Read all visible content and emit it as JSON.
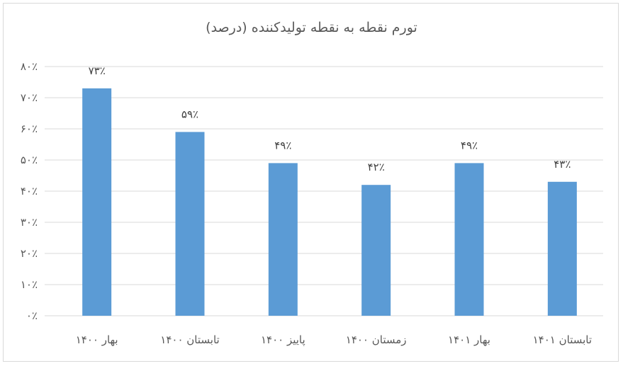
{
  "chart_data": {
    "type": "bar",
    "title": "تورم نقطه به نقطه تولیدکننده (درصد)",
    "categories": [
      "بهار ۱۴۰۰",
      "تابستان ۱۴۰۰",
      "پاییز ۱۴۰۰",
      "زمستان ۱۴۰۰",
      "بهار ۱۴۰۱",
      "تابستان ۱۴۰۱"
    ],
    "values": [
      73,
      59,
      49,
      42,
      49,
      43
    ],
    "data_labels": [
      "۷۳٪",
      "۵۹٪",
      "۴۹٪",
      "۴۲٪",
      "۴۹٪",
      "۴۳٪"
    ],
    "y_ticks": [
      0,
      10,
      20,
      30,
      40,
      50,
      60,
      70,
      80
    ],
    "y_tick_labels": [
      "۰٪",
      "۱۰٪",
      "۲۰٪",
      "۳۰٪",
      "۴۰٪",
      "۵۰٪",
      "۶۰٪",
      "۷۰٪",
      "۸۰٪"
    ],
    "ylim": [
      0,
      80
    ],
    "xlabel": "",
    "ylabel": "",
    "grid": true,
    "legend": "none",
    "bar_color": "#5b9bd5",
    "grid_color": "#d9d9d9",
    "text_color": "#595959"
  }
}
